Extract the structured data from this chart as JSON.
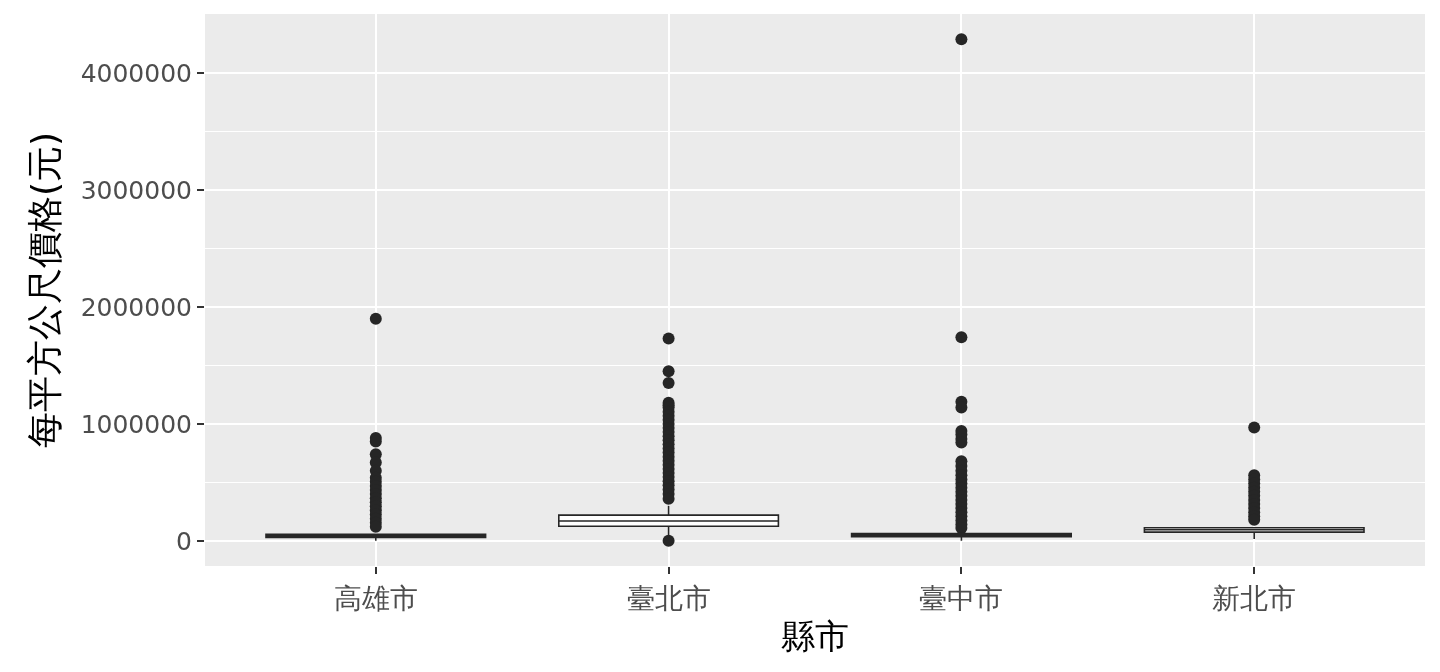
{
  "chart_data": {
    "type": "box",
    "xlabel": "縣市",
    "ylabel": "每平方公尺價格(元)",
    "categories": [
      "高雄市",
      "臺北市",
      "臺中市",
      "新北市"
    ],
    "color": "#262626",
    "marker": "circle",
    "boxes": [
      {
        "low": 0,
        "q1": 30000,
        "median": 42000,
        "q3": 55000,
        "high": null,
        "outliers": [
          1900000,
          880000,
          850000,
          740000,
          670000,
          600000,
          540000,
          505000,
          470000,
          435000,
          400000,
          365000,
          330000,
          295000,
          260000,
          225000,
          190000,
          155000,
          120000
        ]
      },
      {
        "low": 50000,
        "q1": 125000,
        "median": 170000,
        "q3": 220000,
        "high": 300000,
        "outliers": [
          1730000,
          1450000,
          1350000,
          1180000,
          1160000,
          1140000,
          1105000,
          1070000,
          1035000,
          1000000,
          965000,
          930000,
          895000,
          860000,
          825000,
          790000,
          755000,
          720000,
          685000,
          650000,
          615000,
          580000,
          545000,
          510000,
          475000,
          440000,
          400000,
          360000,
          0
        ]
      },
      {
        "low": 0,
        "q1": 35000,
        "median": 48000,
        "q3": 62000,
        "high": null,
        "outliers": [
          4290000,
          1740000,
          1190000,
          1140000,
          940000,
          910000,
          870000,
          840000,
          680000,
          640000,
          600000,
          560000,
          525000,
          490000,
          455000,
          420000,
          385000,
          350000,
          315000,
          280000,
          245000,
          210000,
          175000,
          140000,
          110000
        ]
      },
      {
        "low": 15000,
        "q1": 75000,
        "median": 95000,
        "q3": 112000,
        "high": null,
        "outliers": [
          970000,
          560000,
          525000,
          490000,
          455000,
          420000,
          385000,
          350000,
          315000,
          280000,
          245000,
          210000,
          180000
        ]
      }
    ],
    "ylim": [
      -215000,
      4505000
    ],
    "yticks": [
      0,
      {
        "value": 500000,
        "label": null
      },
      1000000,
      {
        "value": 1500000,
        "label": null
      },
      2000000,
      {
        "value": 2500000,
        "label": null
      },
      3000000,
      {
        "value": 3500000,
        "label": null
      },
      4000000,
      {
        "value": 4500000,
        "label": null
      }
    ],
    "grid": true
  }
}
